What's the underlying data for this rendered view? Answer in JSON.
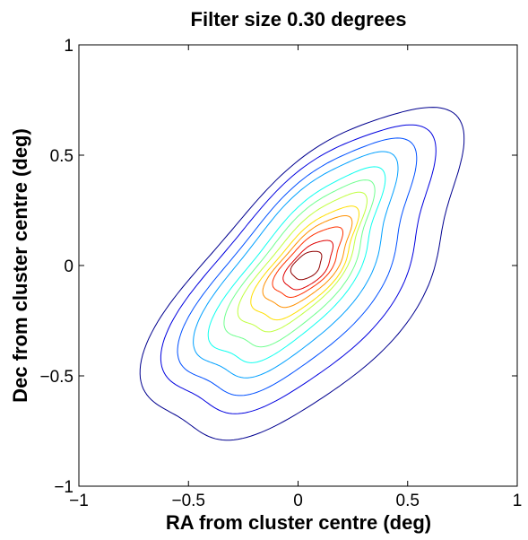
{
  "chart_data": {
    "type": "contour",
    "title": "Filter size 0.30 degrees",
    "xlabel": "RA from cluster centre (deg)",
    "ylabel": "Dec from cluster centre (deg)",
    "xlim": [
      -1,
      1
    ],
    "ylim": [
      -1,
      1
    ],
    "xticks": [
      -1,
      -0.5,
      0,
      0.5,
      1
    ],
    "yticks": [
      -1,
      -0.5,
      0,
      0.5,
      1
    ],
    "xtick_labels": [
      "−1",
      "−0.5",
      "0",
      "0.5",
      "1"
    ],
    "ytick_labels": [
      "−1",
      "−0.5",
      "0",
      "0.5",
      "1"
    ],
    "grid": false,
    "levels": [
      {
        "level": 1,
        "color": "#00008f",
        "cx": 0.05,
        "cy": -0.06,
        "a": 0.93,
        "b": 0.44,
        "angle_deg": 47,
        "wobble": 0.045
      },
      {
        "level": 2,
        "color": "#0000df",
        "cx": 0.03,
        "cy": -0.04,
        "a": 0.8,
        "b": 0.37,
        "angle_deg": 48,
        "wobble": 0.04
      },
      {
        "level": 3,
        "color": "#0050ff",
        "cx": 0.02,
        "cy": -0.03,
        "a": 0.71,
        "b": 0.31,
        "angle_deg": 49,
        "wobble": 0.035
      },
      {
        "level": 4,
        "color": "#00a0ff",
        "cx": 0.01,
        "cy": -0.02,
        "a": 0.62,
        "b": 0.26,
        "angle_deg": 50,
        "wobble": 0.03
      },
      {
        "level": 5,
        "color": "#10ffef",
        "cx": 0.01,
        "cy": -0.02,
        "a": 0.54,
        "b": 0.21,
        "angle_deg": 50,
        "wobble": 0.026
      },
      {
        "level": 6,
        "color": "#70ff8f",
        "cx": 0.02,
        "cy": -0.01,
        "a": 0.46,
        "b": 0.18,
        "angle_deg": 50,
        "wobble": 0.022
      },
      {
        "level": 7,
        "color": "#c0ff40",
        "cx": 0.03,
        "cy": 0.0,
        "a": 0.39,
        "b": 0.15,
        "angle_deg": 49,
        "wobble": 0.018
      },
      {
        "level": 8,
        "color": "#ffdf00",
        "cx": 0.04,
        "cy": 0.0,
        "a": 0.32,
        "b": 0.13,
        "angle_deg": 48,
        "wobble": 0.015
      },
      {
        "level": 9,
        "color": "#ff9000",
        "cx": 0.05,
        "cy": 0.01,
        "a": 0.26,
        "b": 0.11,
        "angle_deg": 47,
        "wobble": 0.012
      },
      {
        "level": 10,
        "color": "#ff3000",
        "cx": 0.05,
        "cy": 0.01,
        "a": 0.2,
        "b": 0.09,
        "angle_deg": 46,
        "wobble": 0.01
      },
      {
        "level": 11,
        "color": "#df0000",
        "cx": 0.05,
        "cy": 0.0,
        "a": 0.14,
        "b": 0.07,
        "angle_deg": 45,
        "wobble": 0.006
      },
      {
        "level": 12,
        "color": "#8f0000",
        "cx": 0.04,
        "cy": 0.0,
        "a": 0.08,
        "b": 0.05,
        "angle_deg": 40,
        "wobble": 0.004
      }
    ]
  }
}
